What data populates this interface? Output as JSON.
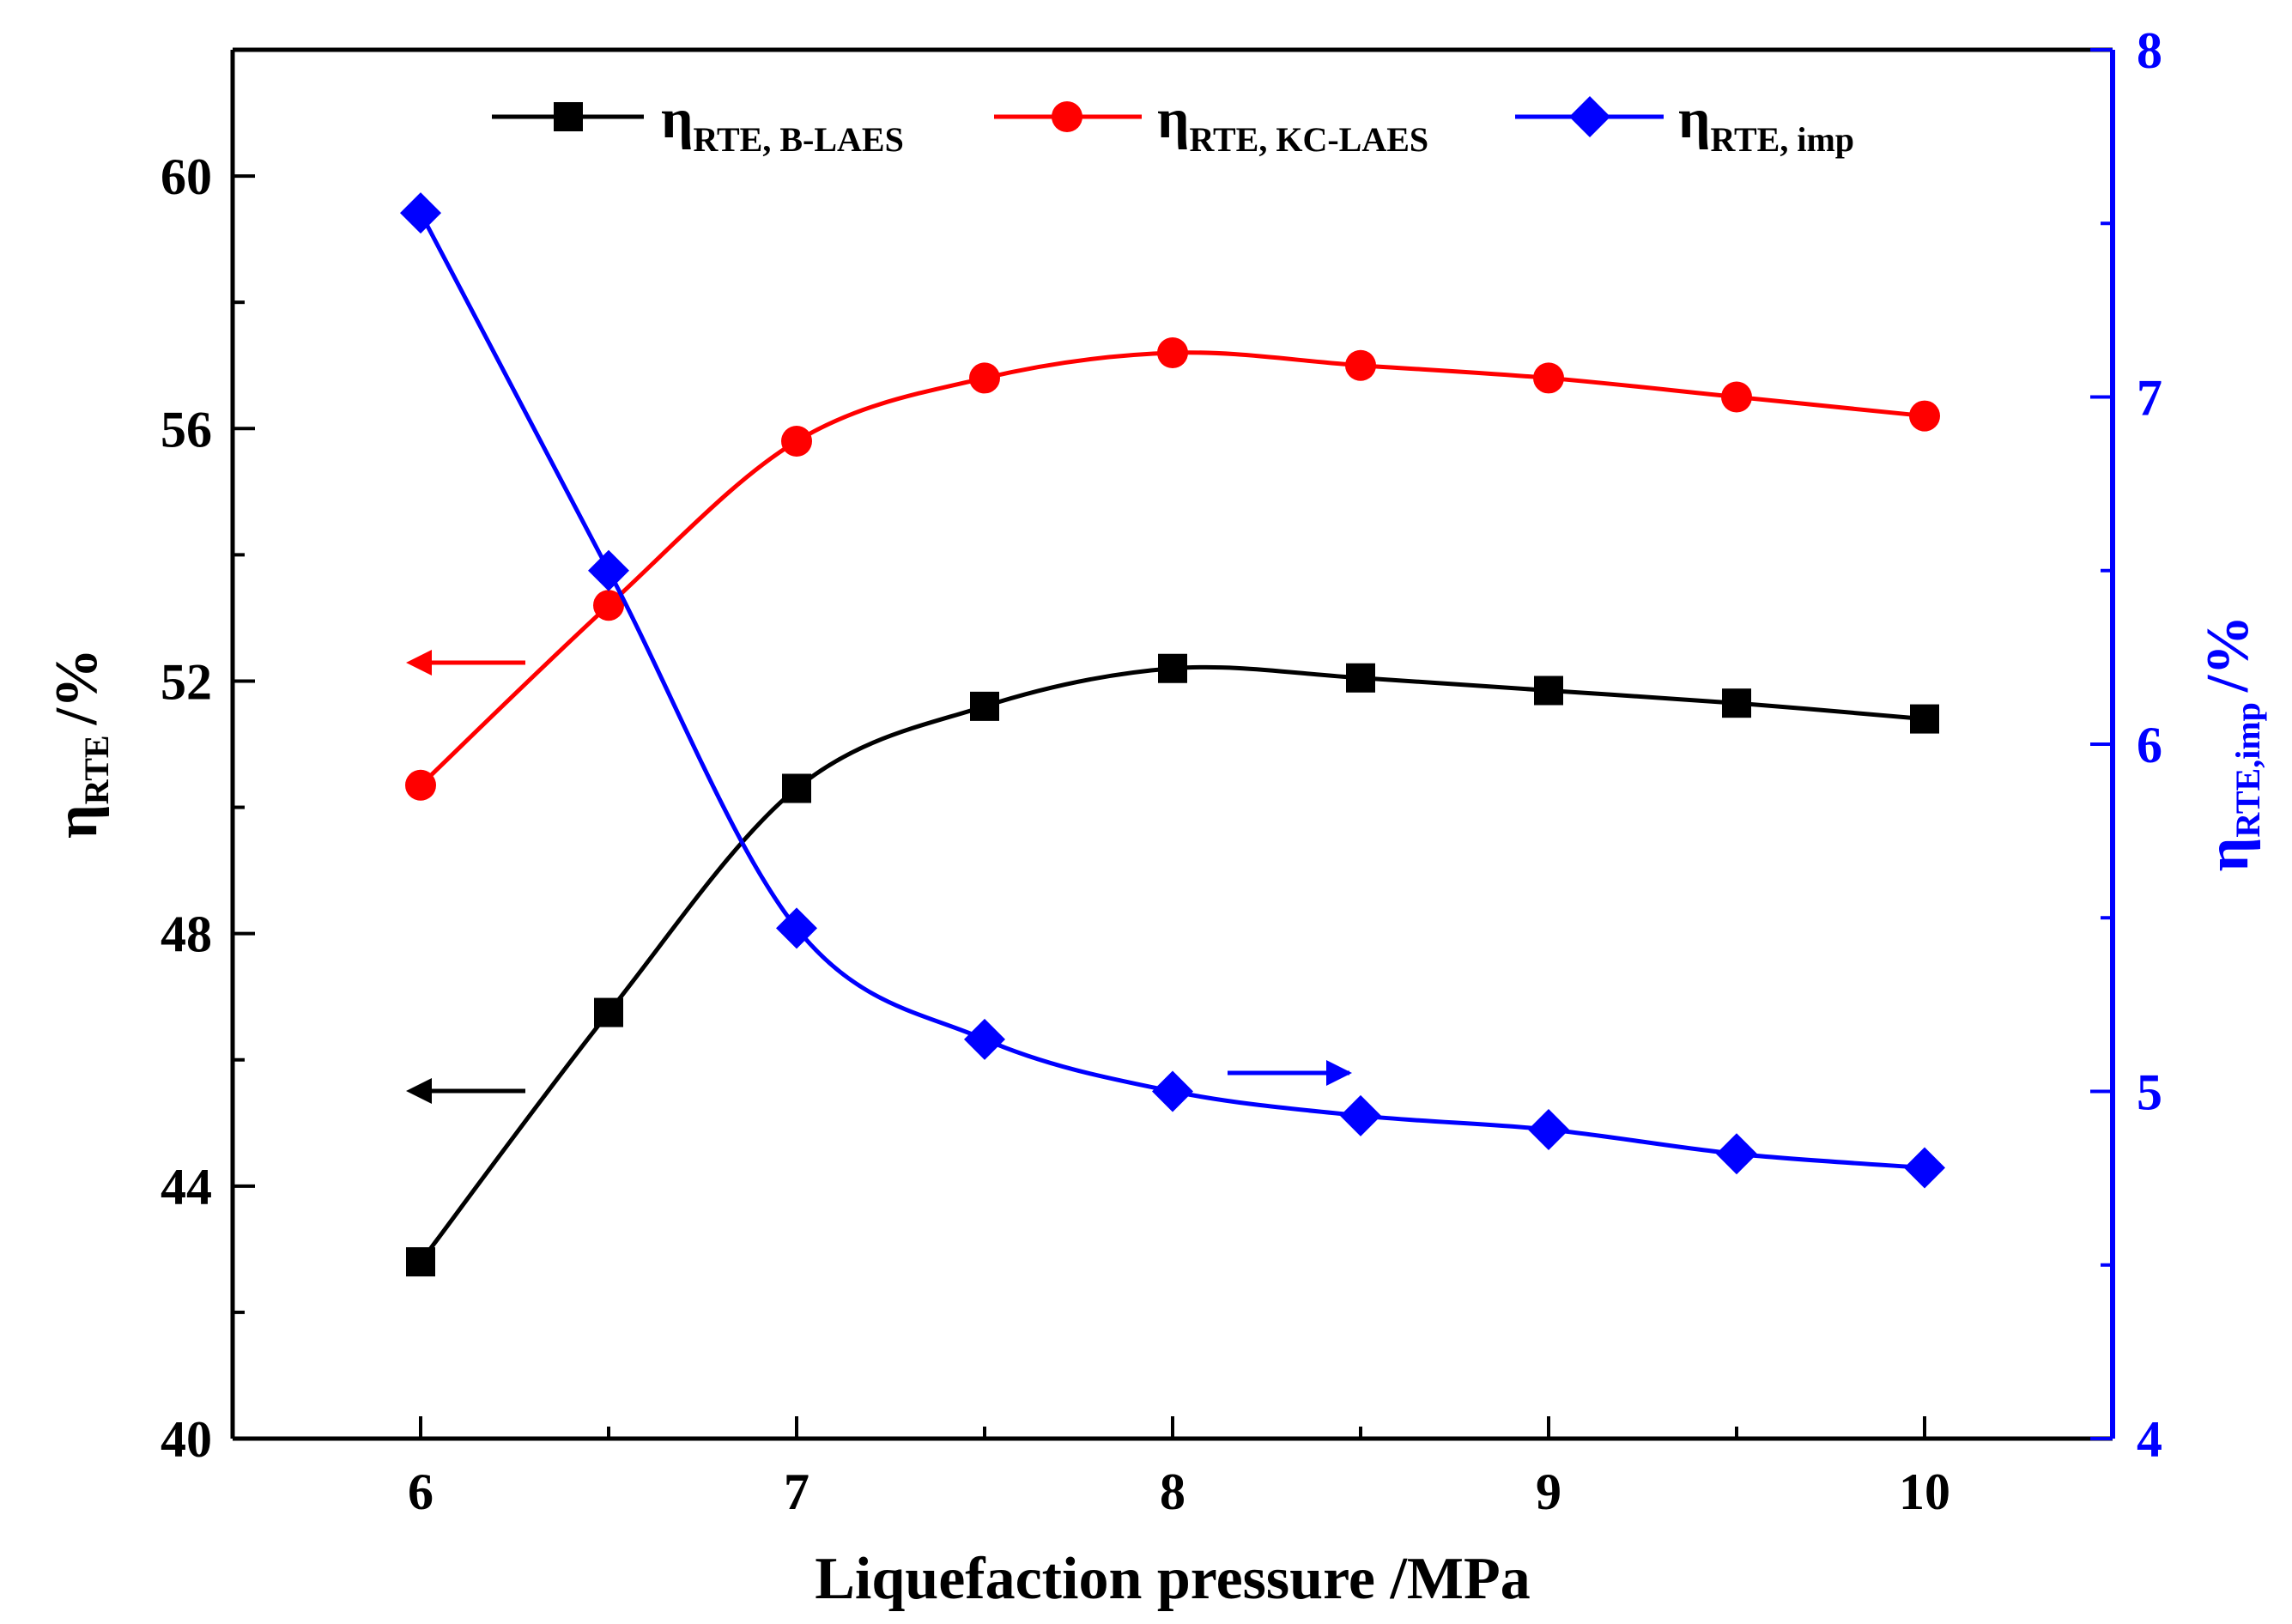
{
  "chart_data": {
    "type": "line",
    "xlabel": "Liquefaction pressure /MPa",
    "ylabel_left": {
      "symbol": "η",
      "subscript": "RTE",
      "unit": "/%"
    },
    "ylabel_right": {
      "symbol": "η",
      "subscript": "RTE,imp",
      "unit": "/%"
    },
    "xlim": [
      5.5,
      10.5
    ],
    "ylim_left": [
      40,
      62
    ],
    "ylim_right": [
      4,
      8
    ],
    "x_ticks": [
      6,
      7,
      8,
      9,
      10
    ],
    "y_ticks_left": [
      40,
      44,
      48,
      52,
      56,
      60
    ],
    "y_ticks_right": [
      4,
      5,
      6,
      7,
      8
    ],
    "x": [
      6,
      6.5,
      7,
      7.5,
      8,
      8.5,
      9,
      9.5,
      10
    ],
    "series": [
      {
        "key": "b-laes",
        "symbol": "η",
        "subscript": "RTE, B-LAES",
        "axis": "left",
        "color": "#000000",
        "marker": "square",
        "values": [
          42.8,
          46.75,
          50.3,
          51.6,
          52.2,
          52.05,
          51.85,
          51.65,
          51.4
        ]
      },
      {
        "key": "kc-laes",
        "symbol": "η",
        "subscript": "RTE, KC-LAES",
        "axis": "left",
        "color": "#ff0000",
        "marker": "circle",
        "values": [
          50.35,
          53.2,
          55.8,
          56.8,
          57.2,
          57.0,
          56.8,
          56.5,
          56.2
        ]
      },
      {
        "key": "imp",
        "symbol": "η",
        "subscript": "RTE, imp",
        "axis": "right",
        "color": "#0000ff",
        "marker": "diamond",
        "values": [
          7.53,
          6.5,
          5.47,
          5.15,
          5.0,
          4.93,
          4.89,
          4.82,
          4.78
        ]
      }
    ],
    "annotations": [
      {
        "type": "arrow",
        "direction": "left",
        "color": "#ff0000",
        "points_to": "left axis"
      },
      {
        "type": "arrow",
        "direction": "left",
        "color": "#000000",
        "points_to": "left axis"
      },
      {
        "type": "arrow",
        "direction": "right",
        "color": "#0000ff",
        "points_to": "right axis"
      }
    ],
    "legend": "top"
  }
}
